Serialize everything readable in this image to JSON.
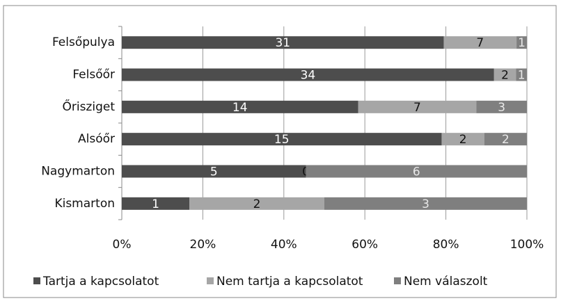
{
  "chart_data": {
    "type": "bar",
    "orientation": "horizontal",
    "stacking": "percent",
    "categories": [
      "Felsőpulya",
      "Felsőőr",
      "Őrisziget",
      "Alsóőr",
      "Nagymarton",
      "Kismarton"
    ],
    "series": [
      {
        "name": "Tartja a kapcsolatot",
        "color": "#4d4d4d",
        "label_color": "#ffffff",
        "values": [
          31,
          34,
          14,
          15,
          5,
          1
        ]
      },
      {
        "name": "Nem tartja a kapcsolatot",
        "color": "#a6a6a6",
        "label_color": "#111111",
        "values": [
          7,
          2,
          7,
          2,
          0,
          2
        ]
      },
      {
        "name": "Nem válaszolt",
        "color": "#7f7f7f",
        "label_color": "#e8e8e8",
        "values": [
          1,
          1,
          3,
          2,
          6,
          3
        ]
      }
    ],
    "xlim": [
      0,
      100
    ],
    "xticks": [
      {
        "value": 0,
        "label": "0%"
      },
      {
        "value": 20,
        "label": "20%"
      },
      {
        "value": 40,
        "label": "40%"
      },
      {
        "value": 60,
        "label": "60%"
      },
      {
        "value": 80,
        "label": "80%"
      },
      {
        "value": 100,
        "label": "100%"
      }
    ],
    "grid": true,
    "legend": "bottom"
  }
}
